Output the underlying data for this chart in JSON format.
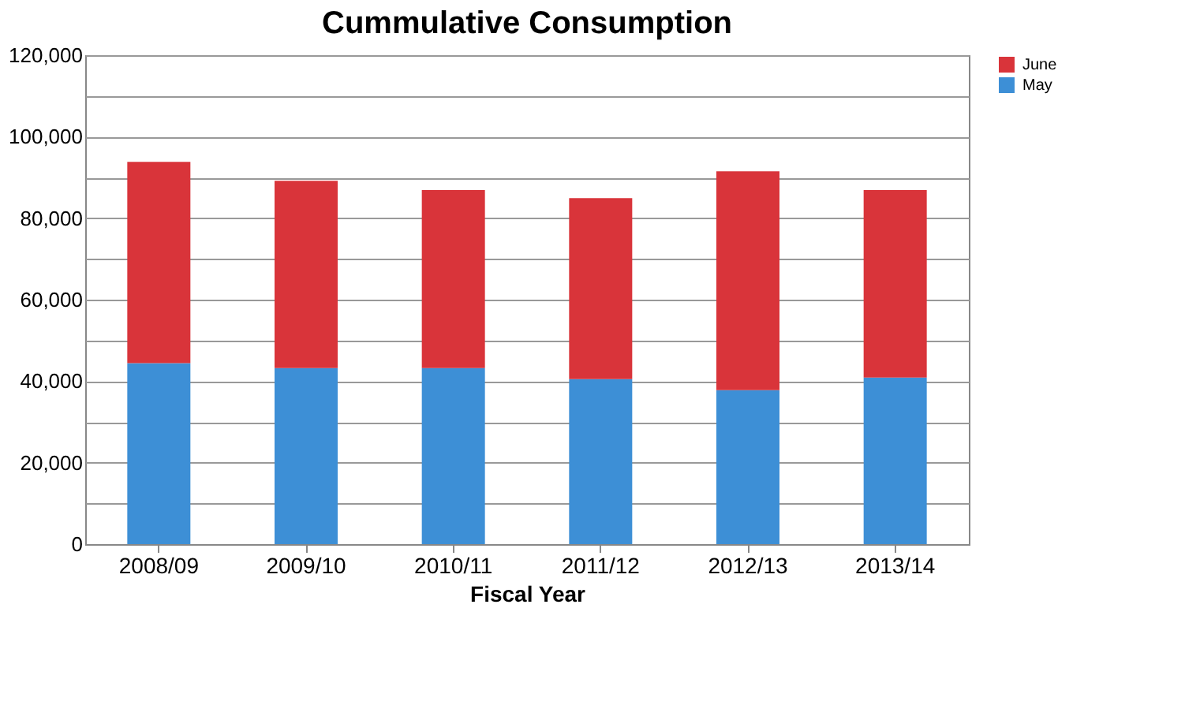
{
  "chart_data": {
    "type": "bar",
    "title": "Cummulative Consumption",
    "xlabel": "Fiscal Year",
    "categories": [
      "2008/09",
      "2009/10",
      "2010/11",
      "2011/12",
      "2012/13",
      "2013/14"
    ],
    "series": [
      {
        "name": "May",
        "color": "#3d8fd6",
        "values": [
          44400,
          43200,
          43200,
          40500,
          37800,
          40900
        ]
      },
      {
        "name": "June",
        "color": "#d9343a",
        "values": [
          49400,
          46000,
          43700,
          44400,
          53700,
          46000
        ]
      }
    ],
    "stacked": true,
    "ylim": [
      0,
      120000
    ],
    "yticks": [
      0,
      {
        "value": 10000,
        "label": null
      },
      {
        "value": 20000,
        "label": "20,000"
      },
      {
        "value": 30000,
        "label": null
      },
      {
        "value": 40000,
        "label": "40,000"
      },
      {
        "value": 50000,
        "label": null
      },
      {
        "value": 60000,
        "label": "60,000"
      },
      {
        "value": 70000,
        "label": null
      },
      {
        "value": 80000,
        "label": "80,000"
      },
      {
        "value": 90000,
        "label": null
      },
      {
        "value": 100000,
        "label": "100,000"
      },
      {
        "value": 110000,
        "label": null
      },
      {
        "value": 120000,
        "label": "120,000"
      }
    ],
    "grid": true,
    "legend": "right"
  }
}
